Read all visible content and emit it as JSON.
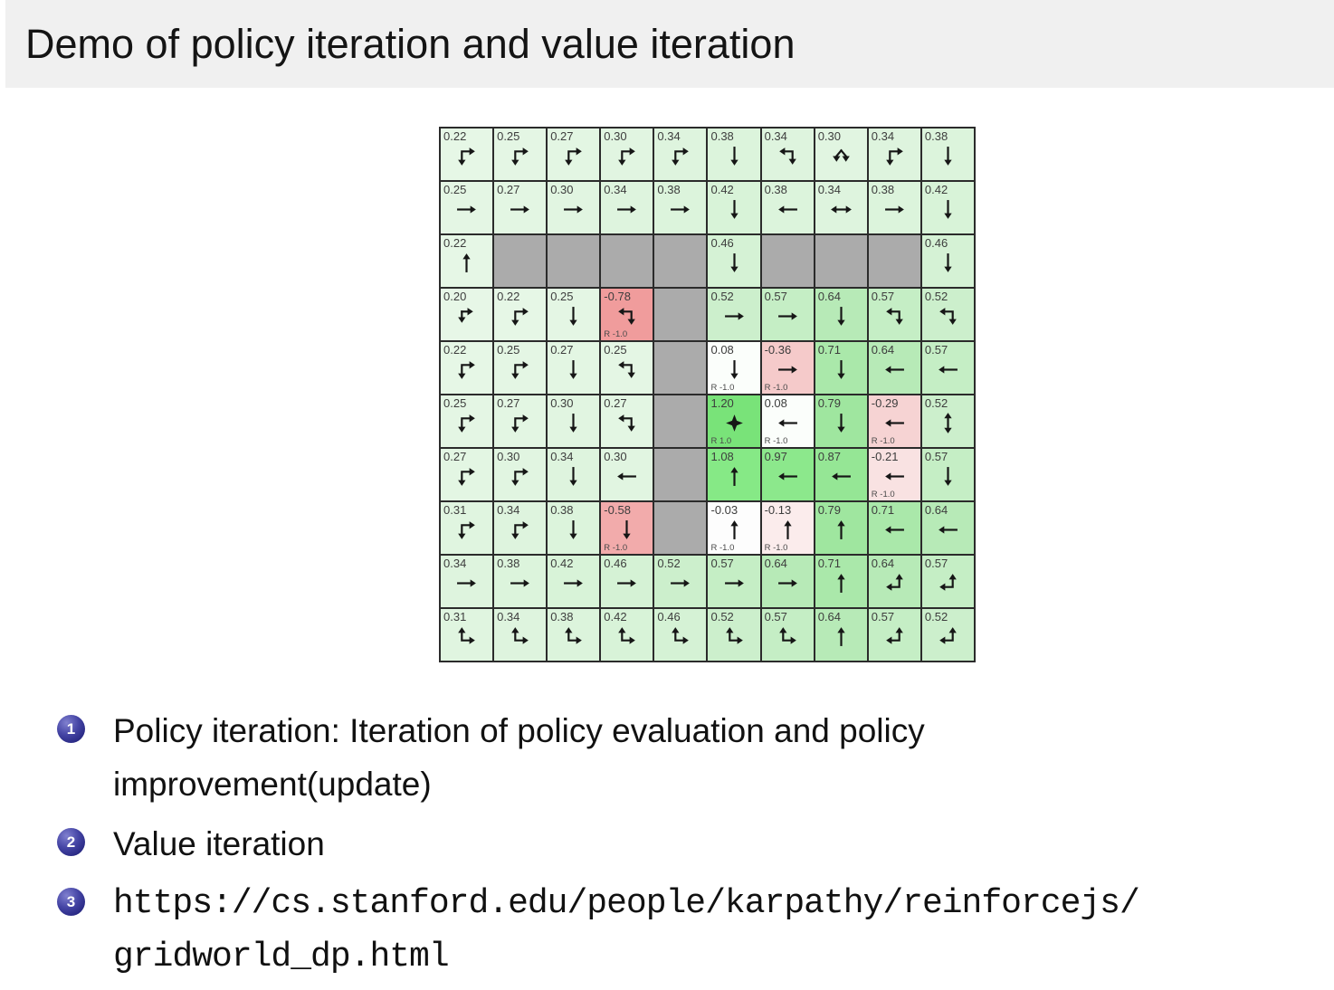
{
  "slide": {
    "title": "Demo of policy iteration and value iteration",
    "items": [
      {
        "number": "1",
        "line1": "Policy iteration: Iteration of policy evaluation and policy",
        "line2": "improvement(update)",
        "mono": false
      },
      {
        "number": "2",
        "line1": "Value iteration",
        "line2": "",
        "mono": false
      },
      {
        "number": "3",
        "line1": "https://cs.stanford.edu/people/karpathy/reinforcejs/",
        "line2": "gridworld_dp.html",
        "mono": true
      }
    ]
  },
  "gridworld": {
    "rows": 10,
    "cols": 10,
    "colors": {
      "wall": "#ababab",
      "grid_line": "#2b2b2b",
      "value_text": "#3d3d3d",
      "reward_text": "#4a4a4a",
      "goal_green": "#79e379",
      "penalty_red": "#f09c9c"
    },
    "legend": {
      "goal_reward_label": "R 1.0",
      "penalty_reward_label": "R -1.0"
    },
    "cells": [
      {
        "v": "0.22",
        "a": "down-right",
        "bg": "#e6f7e6"
      },
      {
        "v": "0.25",
        "a": "down-right",
        "bg": "#e4f6e4"
      },
      {
        "v": "0.27",
        "a": "down-right",
        "bg": "#e3f6e3"
      },
      {
        "v": "0.30",
        "a": "down-right",
        "bg": "#e1f5e1"
      },
      {
        "v": "0.34",
        "a": "down-right",
        "bg": "#def4de"
      },
      {
        "v": "0.38",
        "a": "down",
        "bg": "#dcf4dc"
      },
      {
        "v": "0.34",
        "a": "left-down",
        "bg": "#def4de"
      },
      {
        "v": "0.30",
        "a": "split-down",
        "bg": "#e1f5e1"
      },
      {
        "v": "0.34",
        "a": "down-right",
        "bg": "#def4de"
      },
      {
        "v": "0.38",
        "a": "down",
        "bg": "#dcf4dc"
      },
      {
        "v": "0.25",
        "a": "right",
        "bg": "#e4f6e4"
      },
      {
        "v": "0.27",
        "a": "right",
        "bg": "#e3f6e3"
      },
      {
        "v": "0.30",
        "a": "right",
        "bg": "#e1f5e1"
      },
      {
        "v": "0.34",
        "a": "right",
        "bg": "#def4de"
      },
      {
        "v": "0.38",
        "a": "right",
        "bg": "#dcf4dc"
      },
      {
        "v": "0.42",
        "a": "down",
        "bg": "#d8f3d8"
      },
      {
        "v": "0.38",
        "a": "left",
        "bg": "#dcf4dc"
      },
      {
        "v": "0.34",
        "a": "left-right",
        "bg": "#def4de"
      },
      {
        "v": "0.38",
        "a": "right",
        "bg": "#dcf4dc"
      },
      {
        "v": "0.42",
        "a": "down",
        "bg": "#d8f3d8"
      },
      {
        "v": "0.22",
        "a": "up",
        "bg": "#e6f7e6"
      },
      {
        "w": true
      },
      {
        "w": true
      },
      {
        "w": true
      },
      {
        "w": true
      },
      {
        "v": "0.46",
        "a": "down",
        "bg": "#d5f2d5"
      },
      {
        "w": true
      },
      {
        "w": true
      },
      {
        "w": true
      },
      {
        "v": "0.46",
        "a": "down",
        "bg": "#d5f2d5"
      },
      {
        "v": "0.20",
        "a": "split-right-down",
        "bg": "#e7f7e7"
      },
      {
        "v": "0.22",
        "a": "down-right",
        "bg": "#e6f7e6"
      },
      {
        "v": "0.25",
        "a": "down",
        "bg": "#e4f6e4"
      },
      {
        "v": "-0.78",
        "a": "left-down",
        "bg": "#f09c9c",
        "r": "R -1.0"
      },
      {
        "w": true
      },
      {
        "v": "0.52",
        "a": "right",
        "bg": "#ccefcc"
      },
      {
        "v": "0.57",
        "a": "right",
        "bg": "#c5eec5"
      },
      {
        "v": "0.64",
        "a": "down",
        "bg": "#b7eab7"
      },
      {
        "v": "0.57",
        "a": "left-down",
        "bg": "#c5eec5"
      },
      {
        "v": "0.52",
        "a": "left-down",
        "bg": "#ccefcc"
      },
      {
        "v": "0.22",
        "a": "down-right",
        "bg": "#e6f7e6"
      },
      {
        "v": "0.25",
        "a": "down-right",
        "bg": "#e4f6e4"
      },
      {
        "v": "0.27",
        "a": "down",
        "bg": "#e3f6e3"
      },
      {
        "v": "0.25",
        "a": "left-down",
        "bg": "#e4f6e4"
      },
      {
        "w": true
      },
      {
        "v": "0.08",
        "a": "down",
        "bg": "#fbfefb",
        "r": "R -1.0"
      },
      {
        "v": "-0.36",
        "a": "right",
        "bg": "#f5caca",
        "r": "R -1.0"
      },
      {
        "v": "0.71",
        "a": "down",
        "bg": "#aae8aa"
      },
      {
        "v": "0.64",
        "a": "left",
        "bg": "#b7eab7"
      },
      {
        "v": "0.57",
        "a": "left",
        "bg": "#c5eec5"
      },
      {
        "v": "0.25",
        "a": "down-right",
        "bg": "#e4f6e4"
      },
      {
        "v": "0.27",
        "a": "down-right",
        "bg": "#e3f6e3"
      },
      {
        "v": "0.30",
        "a": "down",
        "bg": "#e1f5e1"
      },
      {
        "v": "0.27",
        "a": "left-down",
        "bg": "#e3f6e3"
      },
      {
        "w": true
      },
      {
        "v": "1.20",
        "a": "goal",
        "bg": "#79e379",
        "r": "R 1.0"
      },
      {
        "v": "0.08",
        "a": "left",
        "bg": "#fbfefb",
        "r": "R -1.0"
      },
      {
        "v": "0.79",
        "a": "down",
        "bg": "#9fe69f"
      },
      {
        "v": "-0.29",
        "a": "left",
        "bg": "#f6d3d3",
        "r": "R -1.0"
      },
      {
        "v": "0.52",
        "a": "up-down",
        "bg": "#ccefcc"
      },
      {
        "v": "0.27",
        "a": "down-right",
        "bg": "#e3f6e3"
      },
      {
        "v": "0.30",
        "a": "down-right",
        "bg": "#e1f5e1"
      },
      {
        "v": "0.34",
        "a": "down",
        "bg": "#def4de"
      },
      {
        "v": "0.30",
        "a": "left",
        "bg": "#e1f5e1"
      },
      {
        "w": true
      },
      {
        "v": "1.08",
        "a": "up",
        "bg": "#86e986"
      },
      {
        "v": "0.97",
        "a": "left",
        "bg": "#8ce88c"
      },
      {
        "v": "0.87",
        "a": "left",
        "bg": "#95e695"
      },
      {
        "v": "-0.21",
        "a": "left",
        "bg": "#f9e2e2",
        "r": "R -1.0"
      },
      {
        "v": "0.57",
        "a": "down",
        "bg": "#c5eec5"
      },
      {
        "v": "0.31",
        "a": "down-right",
        "bg": "#e0f5e0"
      },
      {
        "v": "0.34",
        "a": "down-right",
        "bg": "#def4de"
      },
      {
        "v": "0.38",
        "a": "down",
        "bg": "#dcf4dc"
      },
      {
        "v": "-0.58",
        "a": "down",
        "bg": "#f2abab",
        "r": "R -1.0"
      },
      {
        "w": true
      },
      {
        "v": "-0.03",
        "a": "up",
        "bg": "#fdfdfd",
        "r": "R -1.0"
      },
      {
        "v": "-0.13",
        "a": "up",
        "bg": "#fbecec",
        "r": "R -1.0"
      },
      {
        "v": "0.79",
        "a": "up",
        "bg": "#9fe69f"
      },
      {
        "v": "0.71",
        "a": "left",
        "bg": "#aae8aa"
      },
      {
        "v": "0.64",
        "a": "left",
        "bg": "#b7eab7"
      },
      {
        "v": "0.34",
        "a": "right",
        "bg": "#def4de"
      },
      {
        "v": "0.38",
        "a": "right",
        "bg": "#dcf4dc"
      },
      {
        "v": "0.42",
        "a": "right",
        "bg": "#d8f3d8"
      },
      {
        "v": "0.46",
        "a": "right",
        "bg": "#d5f2d5"
      },
      {
        "v": "0.52",
        "a": "right",
        "bg": "#ccefcc"
      },
      {
        "v": "0.57",
        "a": "right",
        "bg": "#c5eec5"
      },
      {
        "v": "0.64",
        "a": "right",
        "bg": "#b7eab7"
      },
      {
        "v": "0.71",
        "a": "up",
        "bg": "#aae8aa"
      },
      {
        "v": "0.64",
        "a": "up-left",
        "bg": "#b7eab7"
      },
      {
        "v": "0.57",
        "a": "up-left",
        "bg": "#c5eec5"
      },
      {
        "v": "0.31",
        "a": "up-right",
        "bg": "#e0f5e0"
      },
      {
        "v": "0.34",
        "a": "up-right",
        "bg": "#def4de"
      },
      {
        "v": "0.38",
        "a": "up-right",
        "bg": "#dcf4dc"
      },
      {
        "v": "0.42",
        "a": "up-right",
        "bg": "#d8f3d8"
      },
      {
        "v": "0.46",
        "a": "up-right",
        "bg": "#d5f2d5"
      },
      {
        "v": "0.52",
        "a": "up-right",
        "bg": "#ccefcc"
      },
      {
        "v": "0.57",
        "a": "up-right",
        "bg": "#c5eec5"
      },
      {
        "v": "0.64",
        "a": "up",
        "bg": "#b7eab7"
      },
      {
        "v": "0.57",
        "a": "up-left",
        "bg": "#c5eec5"
      },
      {
        "v": "0.52",
        "a": "up-left",
        "bg": "#ccefcc"
      }
    ]
  }
}
